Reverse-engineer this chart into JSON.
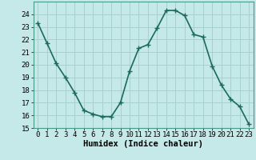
{
  "x": [
    0,
    1,
    2,
    3,
    4,
    5,
    6,
    7,
    8,
    9,
    10,
    11,
    12,
    13,
    14,
    15,
    16,
    17,
    18,
    19,
    20,
    21,
    22,
    23
  ],
  "y": [
    23.3,
    21.7,
    20.1,
    19.0,
    17.8,
    16.4,
    16.1,
    15.9,
    15.9,
    17.0,
    19.5,
    21.3,
    21.6,
    22.9,
    24.3,
    24.3,
    23.9,
    22.4,
    22.2,
    19.9,
    18.4,
    17.3,
    16.7,
    15.3
  ],
  "line_color": "#1a6b5a",
  "marker": "+",
  "marker_size": 4,
  "marker_lw": 1.0,
  "line_width": 1.2,
  "bg_color": "#c5e8e8",
  "grid_color": "#a8d0d0",
  "xlabel": "Humidex (Indice chaleur)",
  "ylim": [
    15,
    25
  ],
  "xlim": [
    -0.5,
    23.5
  ],
  "yticks": [
    15,
    16,
    17,
    18,
    19,
    20,
    21,
    22,
    23,
    24
  ],
  "xticks": [
    0,
    1,
    2,
    3,
    4,
    5,
    6,
    7,
    8,
    9,
    10,
    11,
    12,
    13,
    14,
    15,
    16,
    17,
    18,
    19,
    20,
    21,
    22,
    23
  ],
  "tick_fontsize": 6.5,
  "xlabel_fontsize": 7.5
}
